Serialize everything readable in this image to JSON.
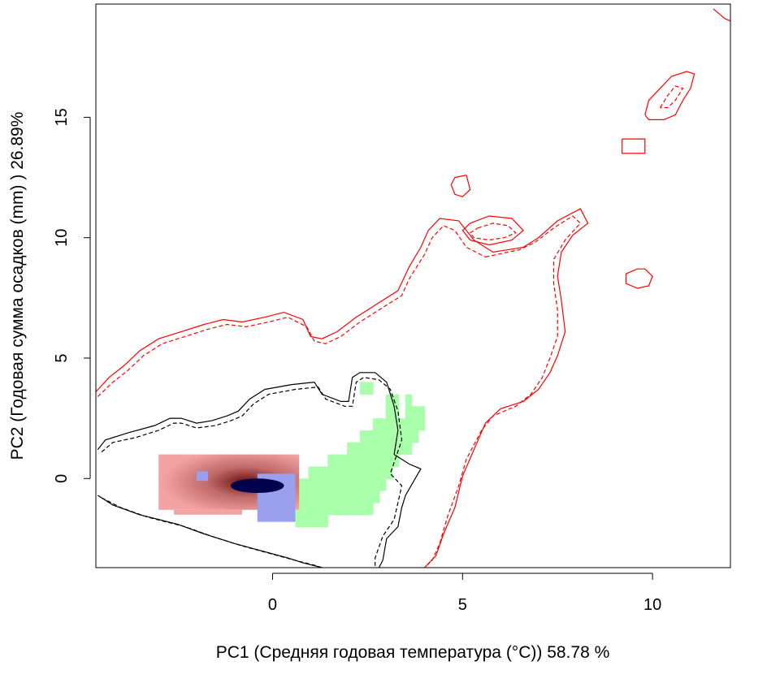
{
  "chart_data": {
    "type": "heatmap",
    "title": "",
    "xlabel": "PC1 (Средняя годовая температура (°C)) 58.78 %",
    "ylabel": "PC2 (Годовая сумма осадков  (mm) ) 26.89%",
    "xlim": [
      -4.65,
      12.05
    ],
    "ylim": [
      -3.7,
      19.7
    ],
    "xticks": [
      0,
      5,
      10
    ],
    "xtick_labels": [
      "0",
      "5",
      "10"
    ],
    "yticks": [
      0,
      5,
      10,
      15
    ],
    "ytick_labels": [
      "0",
      "5",
      "10",
      "15"
    ],
    "grid": false,
    "legend": "none",
    "colors": {
      "niche_a": "#f4a3a3",
      "niche_a_core": "#6b0d0d",
      "niche_b": "#9aa0ee",
      "overlap_core": "#00004d",
      "expansion": "#aaffaa",
      "contour_a": "#000000",
      "contour_b": "#ff0000"
    },
    "layers": [
      {
        "name": "expansion",
        "cells": [
          [
            6,
            14,
            15
          ],
          [
            5,
            14,
            15
          ],
          [
            4,
            12,
            16
          ],
          [
            3,
            10,
            17
          ],
          [
            2,
            8,
            17
          ],
          [
            1,
            5,
            15
          ],
          [
            0,
            2,
            14
          ],
          [
            -1,
            0,
            13
          ],
          [
            -2,
            -1,
            12
          ],
          [
            -3,
            -2,
            11
          ],
          [
            -4,
            0,
            4
          ]
        ],
        "extra_cells": [
          [
            7,
            10,
            11
          ],
          [
            6,
            17,
            17
          ],
          [
            5,
            17,
            19
          ],
          [
            4,
            17,
            19
          ],
          [
            3,
            18,
            18
          ],
          [
            -2,
            0,
            0
          ],
          [
            -3,
            0,
            0
          ]
        ]
      },
      {
        "name": "niche_a",
        "cells": [
          [
            1,
            -3,
            -1
          ],
          [
            0,
            -3,
            0
          ],
          [
            -1,
            -3,
            0
          ]
        ]
      }
    ],
    "contours": [
      {
        "name": "contour_a_solid",
        "points": [
          [
            -4.6,
            1.2
          ],
          [
            -4.4,
            1.6
          ],
          [
            -3.8,
            1.9
          ],
          [
            -3.1,
            2.2
          ],
          [
            -2.7,
            2.5
          ],
          [
            -2.4,
            2.5
          ],
          [
            -2.0,
            2.3
          ],
          [
            -1.6,
            2.4
          ],
          [
            -1.2,
            2.6
          ],
          [
            -0.9,
            2.8
          ],
          [
            -0.6,
            3.3
          ],
          [
            -0.2,
            3.7
          ],
          [
            0.5,
            3.9
          ],
          [
            1.1,
            4.0
          ],
          [
            1.3,
            3.5
          ],
          [
            1.8,
            3.2
          ],
          [
            2.0,
            3.2
          ],
          [
            2.1,
            4.2
          ],
          [
            2.3,
            4.4
          ],
          [
            2.7,
            4.4
          ],
          [
            3.0,
            4.0
          ],
          [
            3.2,
            3.0
          ],
          [
            3.3,
            2.0
          ],
          [
            3.2,
            1.0
          ],
          [
            3.6,
            0.6
          ],
          [
            3.9,
            0.4
          ],
          [
            3.5,
            -0.7
          ],
          [
            3.4,
            -1.2
          ],
          [
            3.3,
            -2.0
          ],
          [
            3.0,
            -2.5
          ],
          [
            2.9,
            -3.4
          ],
          [
            2.8,
            -3.7
          ]
        ]
      },
      {
        "name": "contour_a_dashed",
        "points": [
          [
            -4.5,
            1.1
          ],
          [
            -4.2,
            1.5
          ],
          [
            -3.6,
            1.7
          ],
          [
            -3.0,
            2.0
          ],
          [
            -2.6,
            2.3
          ],
          [
            -2.4,
            2.3
          ],
          [
            -2.0,
            2.1
          ],
          [
            -1.5,
            2.2
          ],
          [
            -1.1,
            2.4
          ],
          [
            -0.8,
            2.6
          ],
          [
            -0.5,
            3.1
          ],
          [
            -0.1,
            3.5
          ],
          [
            0.6,
            3.7
          ],
          [
            1.2,
            3.8
          ],
          [
            1.4,
            3.3
          ],
          [
            1.9,
            3.0
          ],
          [
            2.1,
            3.0
          ],
          [
            2.2,
            4.0
          ],
          [
            2.4,
            4.2
          ],
          [
            2.8,
            4.1
          ],
          [
            3.1,
            3.7
          ],
          [
            3.3,
            2.8
          ],
          [
            3.4,
            1.6
          ],
          [
            3.1,
            0.2
          ],
          [
            3.4,
            -0.3
          ],
          [
            3.3,
            -1.0
          ],
          [
            3.2,
            -1.7
          ],
          [
            2.9,
            -2.4
          ],
          [
            2.7,
            -3.3
          ],
          [
            2.7,
            -3.7
          ]
        ]
      },
      {
        "name": "contour_a_lower_solid",
        "points": [
          [
            -4.6,
            -0.7
          ],
          [
            -4.2,
            -1.1
          ],
          [
            -3.5,
            -1.5
          ],
          [
            -2.5,
            -1.9
          ],
          [
            -1.8,
            -2.3
          ],
          [
            -1.0,
            -2.7
          ],
          [
            -0.3,
            -3.0
          ],
          [
            0.4,
            -3.3
          ],
          [
            0.8,
            -3.5
          ],
          [
            1.3,
            -3.7
          ]
        ]
      },
      {
        "name": "contour_a_lower_dashed",
        "points": [
          [
            -4.5,
            -0.8
          ],
          [
            -4.0,
            -1.2
          ],
          [
            -3.3,
            -1.6
          ],
          [
            -2.3,
            -2.0
          ],
          [
            -1.6,
            -2.4
          ],
          [
            -0.8,
            -2.8
          ],
          [
            -0.1,
            -3.1
          ],
          [
            0.6,
            -3.4
          ],
          [
            1.1,
            -3.6
          ],
          [
            1.3,
            -3.7
          ]
        ]
      },
      {
        "name": "contour_b_left_solid",
        "points": [
          [
            -4.65,
            3.6
          ],
          [
            -4.3,
            4.2
          ],
          [
            -3.9,
            4.7
          ],
          [
            -3.5,
            5.3
          ],
          [
            -3.0,
            5.8
          ],
          [
            -2.4,
            6.1
          ],
          [
            -1.8,
            6.4
          ],
          [
            -1.3,
            6.6
          ],
          [
            -0.8,
            6.5
          ],
          [
            -0.2,
            6.7
          ],
          [
            0.3,
            6.9
          ],
          [
            0.8,
            6.6
          ],
          [
            1.0,
            5.9
          ],
          [
            1.3,
            5.8
          ],
          [
            1.7,
            6.1
          ],
          [
            2.2,
            6.7
          ],
          [
            2.8,
            7.3
          ],
          [
            3.3,
            7.8
          ],
          [
            3.6,
            8.8
          ],
          [
            3.9,
            9.6
          ],
          [
            4.1,
            10.3
          ],
          [
            4.4,
            10.8
          ],
          [
            4.9,
            10.7
          ],
          [
            5.3,
            9.9
          ],
          [
            5.8,
            9.4
          ]
        ]
      },
      {
        "name": "contour_b_left_dashed",
        "points": [
          [
            -4.6,
            3.4
          ],
          [
            -4.2,
            4.0
          ],
          [
            -3.8,
            4.5
          ],
          [
            -3.4,
            5.1
          ],
          [
            -2.9,
            5.6
          ],
          [
            -2.3,
            5.9
          ],
          [
            -1.7,
            6.2
          ],
          [
            -1.2,
            6.4
          ],
          [
            -0.7,
            6.3
          ],
          [
            -0.1,
            6.5
          ],
          [
            0.4,
            6.7
          ],
          [
            0.9,
            6.3
          ],
          [
            1.1,
            5.7
          ],
          [
            1.4,
            5.6
          ],
          [
            1.8,
            5.9
          ],
          [
            2.3,
            6.5
          ],
          [
            2.9,
            7.1
          ],
          [
            3.4,
            7.6
          ],
          [
            3.6,
            8.3
          ],
          [
            4.0,
            9.3
          ],
          [
            4.2,
            10.0
          ],
          [
            4.5,
            10.5
          ],
          [
            4.8,
            10.3
          ],
          [
            5.1,
            9.6
          ],
          [
            5.6,
            9.2
          ]
        ]
      },
      {
        "name": "contour_b_right_solid",
        "points": [
          [
            5.8,
            9.4
          ],
          [
            6.6,
            9.6
          ],
          [
            7.0,
            10.0
          ],
          [
            7.5,
            10.7
          ],
          [
            8.1,
            11.2
          ],
          [
            8.3,
            10.6
          ],
          [
            7.9,
            10.1
          ],
          [
            7.6,
            9.4
          ],
          [
            7.5,
            8.4
          ],
          [
            7.6,
            7.4
          ],
          [
            7.7,
            6.1
          ],
          [
            7.5,
            5.1
          ],
          [
            7.3,
            4.4
          ],
          [
            7.0,
            3.7
          ],
          [
            6.6,
            3.2
          ],
          [
            6.0,
            2.9
          ],
          [
            5.6,
            2.3
          ],
          [
            5.3,
            1.2
          ],
          [
            5.0,
            0.1
          ],
          [
            4.8,
            -1.2
          ],
          [
            4.5,
            -2.3
          ],
          [
            4.3,
            -3.2
          ],
          [
            4.0,
            -3.7
          ]
        ]
      },
      {
        "name": "contour_b_right_dashed",
        "points": [
          [
            5.6,
            9.2
          ],
          [
            6.5,
            9.5
          ],
          [
            6.9,
            9.8
          ],
          [
            7.4,
            10.4
          ],
          [
            7.9,
            10.9
          ],
          [
            8.1,
            10.6
          ],
          [
            7.7,
            9.9
          ],
          [
            7.4,
            9.1
          ],
          [
            7.4,
            8.1
          ],
          [
            7.5,
            7.0
          ],
          [
            7.5,
            5.9
          ],
          [
            7.3,
            5.0
          ],
          [
            7.1,
            4.2
          ],
          [
            6.8,
            3.5
          ],
          [
            6.4,
            3.0
          ],
          [
            5.8,
            2.6
          ],
          [
            5.5,
            2.0
          ],
          [
            5.1,
            0.8
          ],
          [
            4.9,
            -0.3
          ],
          [
            4.6,
            -1.6
          ],
          [
            4.4,
            -2.7
          ],
          [
            4.2,
            -3.4
          ],
          [
            4.0,
            -3.7
          ]
        ]
      },
      {
        "name": "contour_b_small_solid",
        "points": [
          [
            5.2,
            10.6
          ],
          [
            5.7,
            10.9
          ],
          [
            6.3,
            10.8
          ],
          [
            6.6,
            10.3
          ],
          [
            6.3,
            9.9
          ],
          [
            5.7,
            9.7
          ],
          [
            5.2,
            9.9
          ],
          [
            5.0,
            10.3
          ],
          [
            5.2,
            10.6
          ]
        ]
      },
      {
        "name": "contour_b_small_dashed",
        "points": [
          [
            5.4,
            10.4
          ],
          [
            5.8,
            10.6
          ],
          [
            6.2,
            10.5
          ],
          [
            6.4,
            10.2
          ],
          [
            6.1,
            10.0
          ],
          [
            5.7,
            9.9
          ],
          [
            5.3,
            10.0
          ],
          [
            5.2,
            10.2
          ],
          [
            5.4,
            10.4
          ]
        ]
      },
      {
        "name": "contour_b_island_1",
        "points": [
          [
            5.1,
            12.6
          ],
          [
            5.2,
            12.0
          ],
          [
            5.0,
            11.7
          ],
          [
            4.8,
            11.8
          ],
          [
            4.7,
            12.2
          ],
          [
            4.8,
            12.5
          ],
          [
            5.1,
            12.6
          ]
        ]
      },
      {
        "name": "contour_b_island_2",
        "points": [
          [
            9.8,
            8.7
          ],
          [
            10.0,
            8.4
          ],
          [
            9.9,
            8.0
          ],
          [
            9.6,
            7.9
          ],
          [
            9.3,
            8.1
          ],
          [
            9.3,
            8.5
          ],
          [
            9.6,
            8.7
          ],
          [
            9.8,
            8.7
          ]
        ]
      },
      {
        "name": "contour_b_island_3",
        "points": [
          [
            9.2,
            14.1
          ],
          [
            9.8,
            14.1
          ],
          [
            9.8,
            13.5
          ],
          [
            9.2,
            13.5
          ],
          [
            9.2,
            14.1
          ]
        ]
      },
      {
        "name": "contour_b_island_4",
        "points": [
          [
            9.8,
            15.1
          ],
          [
            9.9,
            15.7
          ],
          [
            10.2,
            16.2
          ],
          [
            10.5,
            16.7
          ],
          [
            10.9,
            16.9
          ],
          [
            11.1,
            16.8
          ],
          [
            11.0,
            16.2
          ],
          [
            10.8,
            15.7
          ],
          [
            10.6,
            15.1
          ],
          [
            10.3,
            14.9
          ],
          [
            9.9,
            14.9
          ],
          [
            9.8,
            15.1
          ]
        ]
      },
      {
        "name": "contour_b_island_4_dashed",
        "points": [
          [
            10.2,
            15.4
          ],
          [
            10.4,
            15.9
          ],
          [
            10.6,
            16.3
          ],
          [
            10.8,
            16.2
          ],
          [
            10.6,
            15.7
          ],
          [
            10.4,
            15.4
          ],
          [
            10.2,
            15.4
          ]
        ]
      },
      {
        "name": "contour_b_corner",
        "points": [
          [
            11.6,
            19.5
          ],
          [
            11.9,
            19.1
          ],
          [
            12.05,
            19.0
          ]
        ]
      }
    ]
  }
}
